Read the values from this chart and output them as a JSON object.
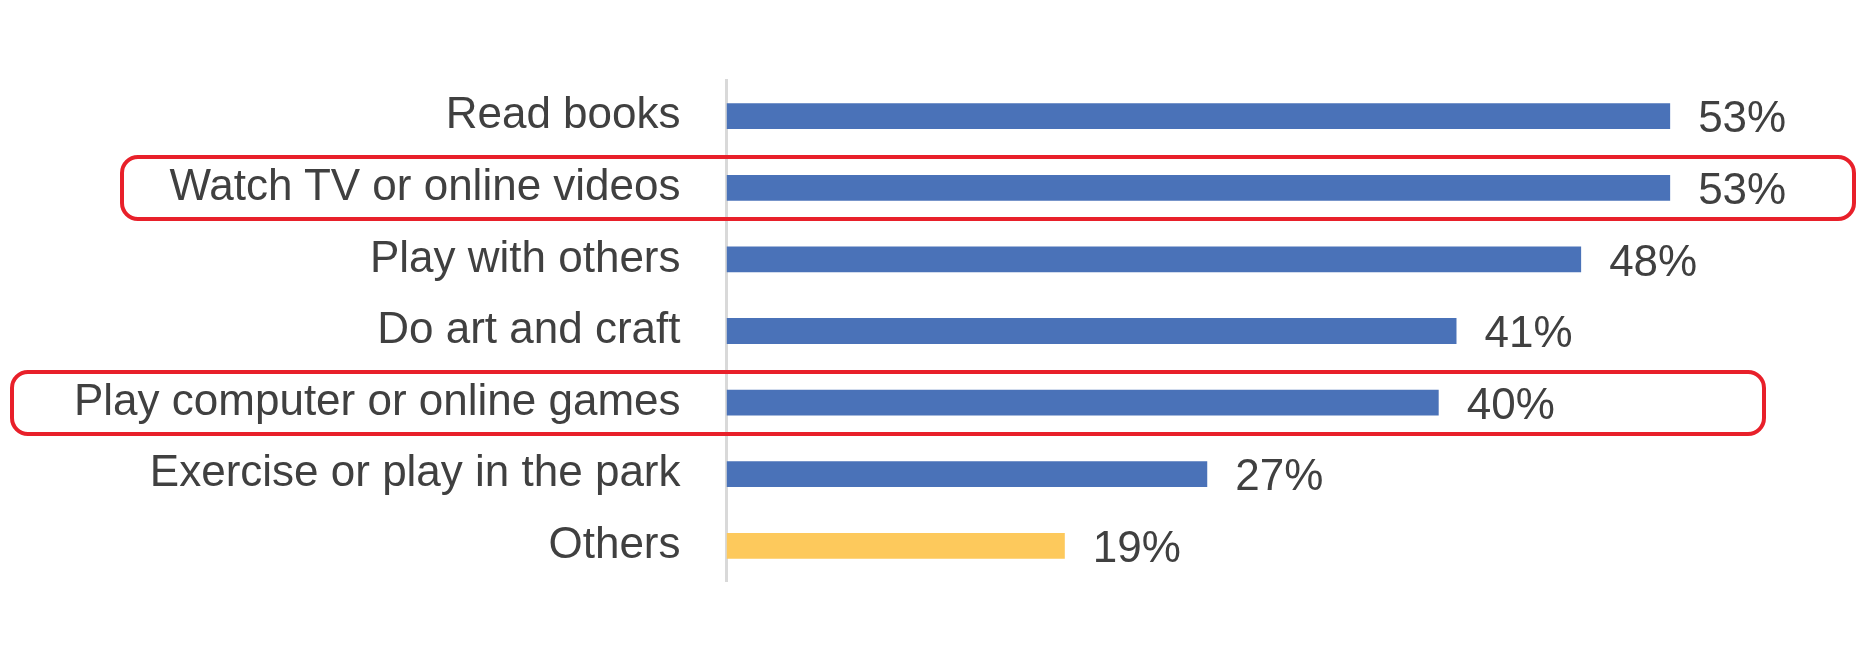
{
  "chart_data": {
    "type": "bar",
    "orientation": "horizontal",
    "categories": [
      "Read books",
      "Watch TV or online videos",
      "Play with others",
      "Do art and craft",
      "Play computer or online games",
      "Exercise or play in the park",
      "Others"
    ],
    "values": [
      53,
      53,
      48,
      41,
      40,
      27,
      19
    ],
    "colors": [
      "#4a72b8",
      "#4a72b8",
      "#4a72b8",
      "#4a72b8",
      "#4a72b8",
      "#4a72b8",
      "#fdc95c"
    ],
    "value_labels": [
      "53%",
      "53%",
      "48%",
      "41%",
      "40%",
      "27%",
      "19%"
    ],
    "legend": false
  }
}
